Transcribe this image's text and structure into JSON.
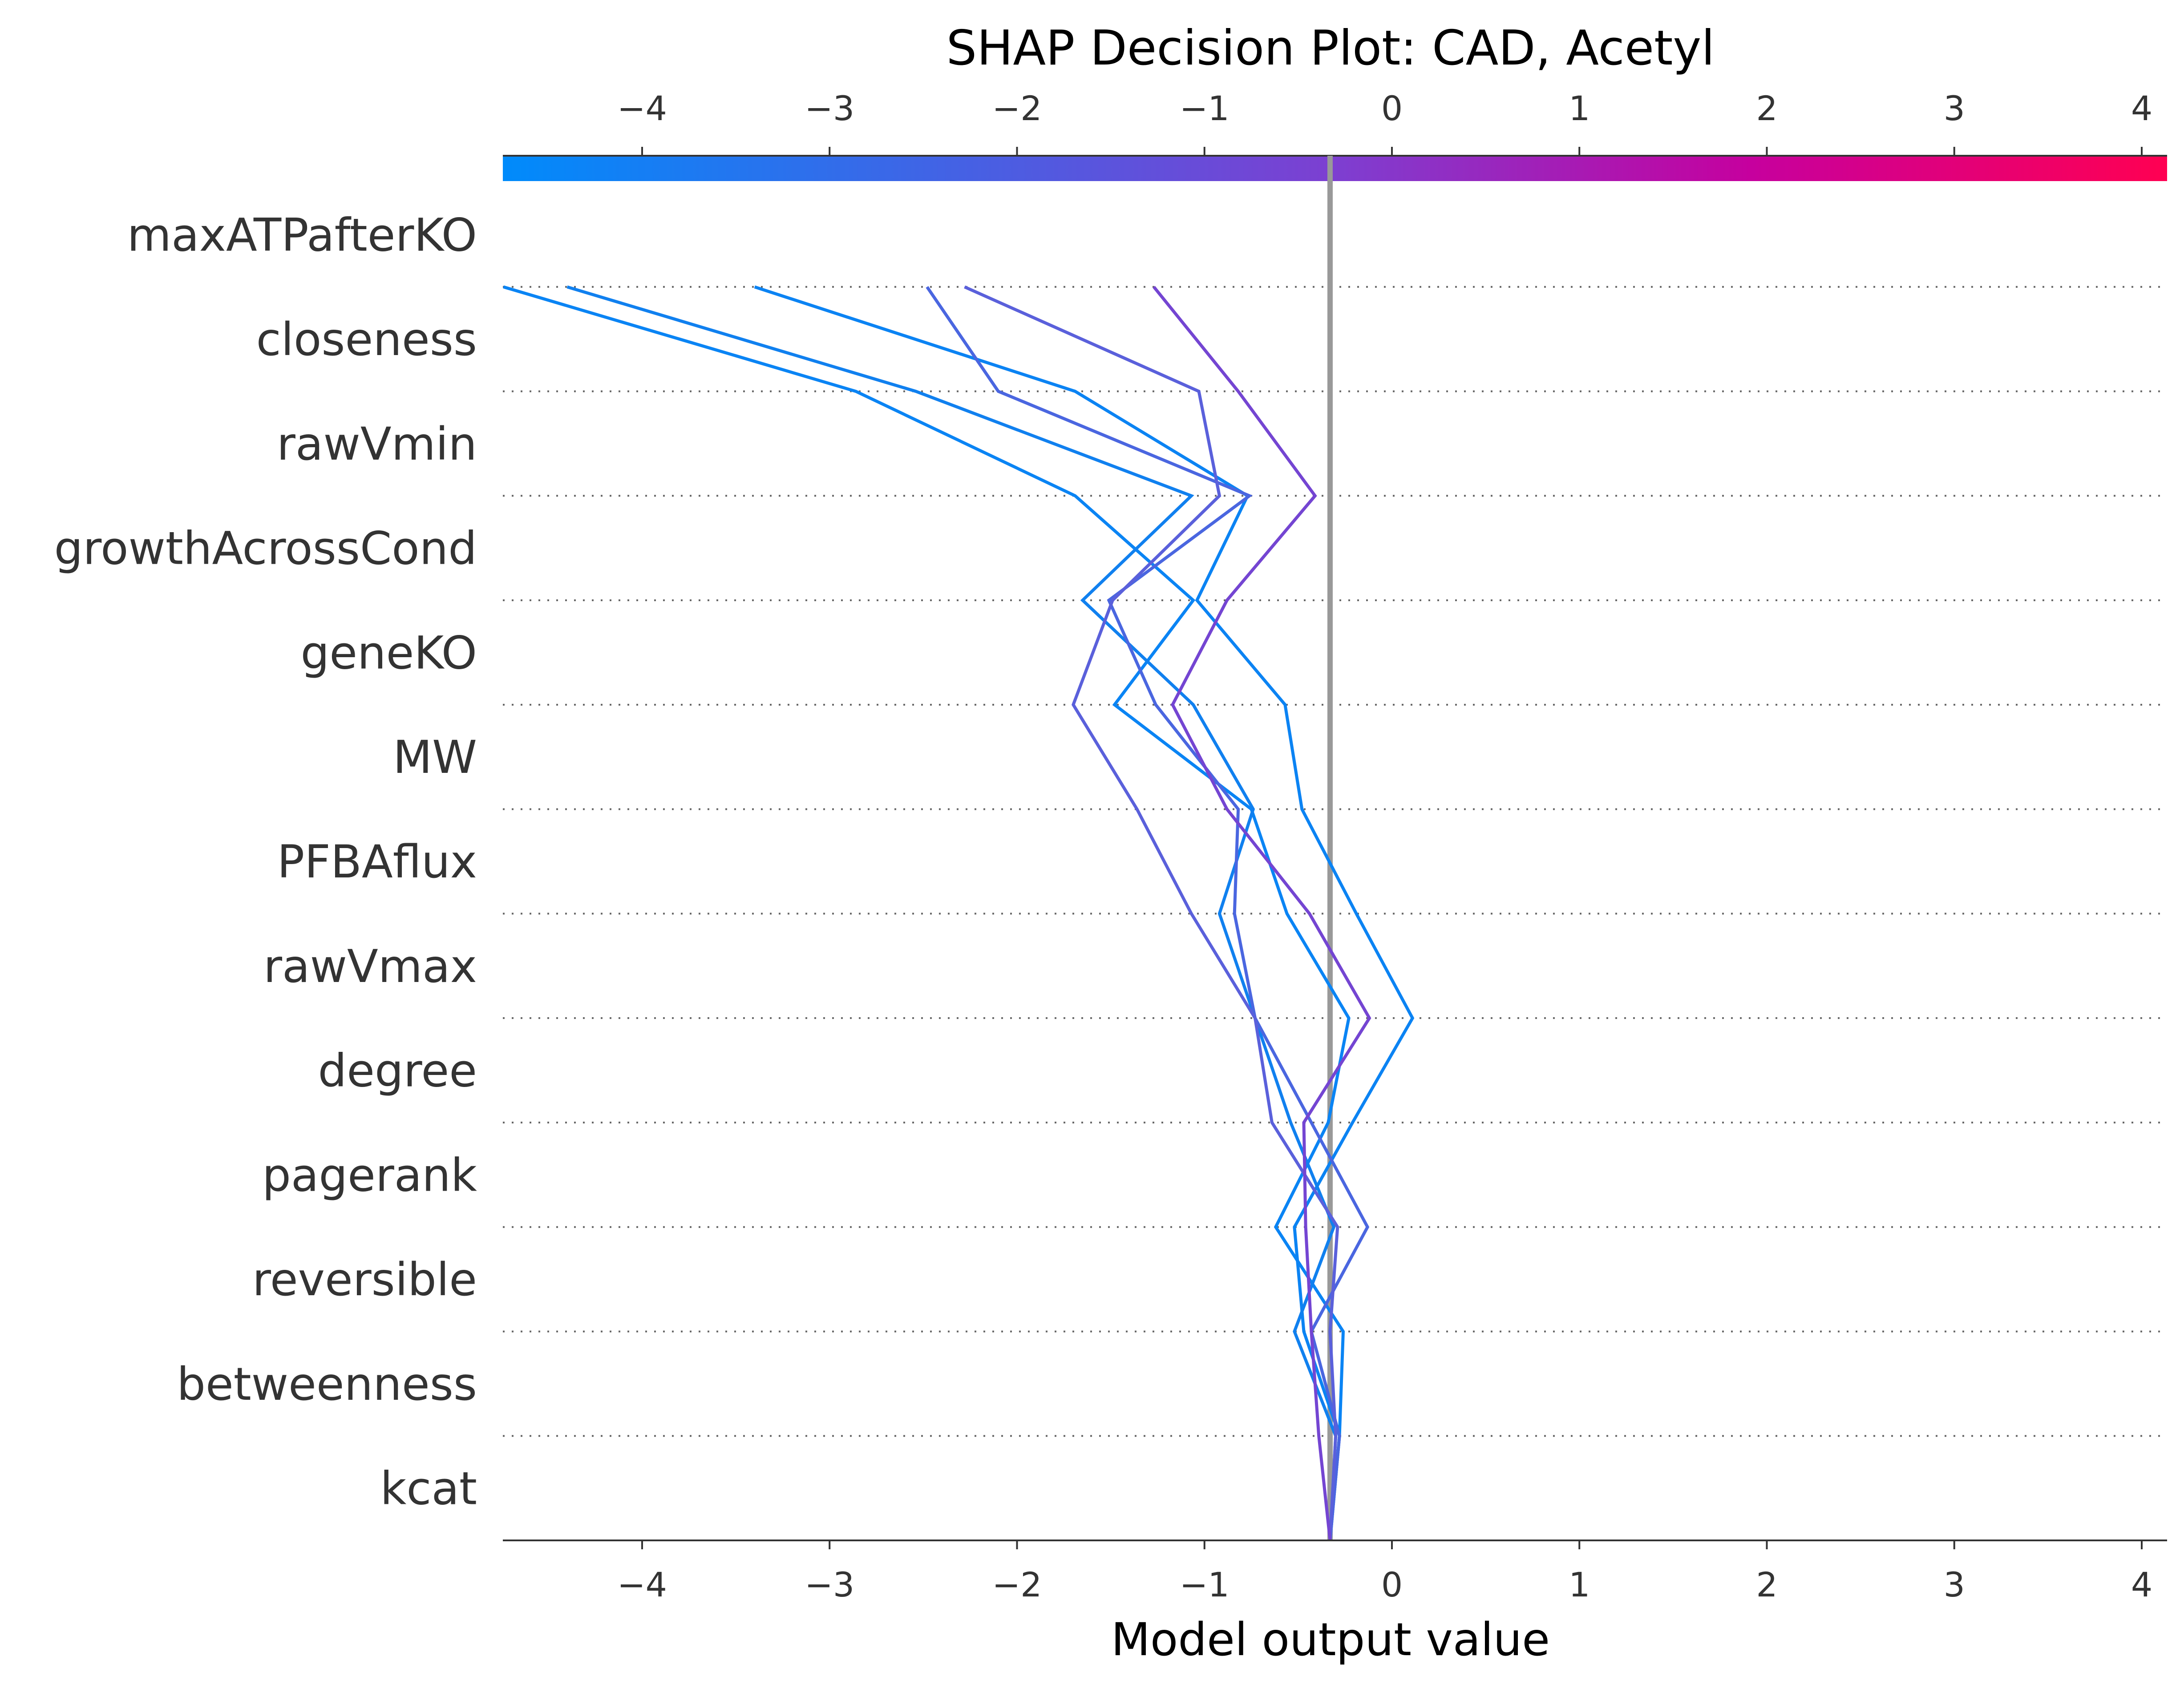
{
  "chart_data": {
    "type": "line",
    "title": "SHAP Decision Plot: CAD, Acetyl",
    "xlabel": "Model output value",
    "ylabel": "",
    "xlim": [
      -4.74,
      4.08
    ],
    "x_ticks": [
      -4,
      -3,
      -2,
      -1,
      0,
      1,
      2,
      3,
      4
    ],
    "x_tick_labels": [
      "−4",
      "−3",
      "−2",
      "−1",
      "0",
      "1",
      "2",
      "3",
      "4"
    ],
    "base_value": -0.33,
    "features": [
      "maxATPafterKO",
      "closeness",
      "rawVmin",
      "growthAcrossCond",
      "geneKO",
      "MW",
      "PFBAflux",
      "rawVmax",
      "degree",
      "pagerank",
      "reversible",
      "betweenness",
      "kcat"
    ],
    "colormap": [
      "#008bfb",
      "#7d3fd1",
      "#ff0052"
    ],
    "colorbar_range": [
      -4.74,
      4.08
    ],
    "grid": "dotted horizontal lines between features",
    "series": [
      {
        "color": "#0a84f4",
        "values": [
          -0.33,
          -0.28,
          -0.26,
          -0.62,
          -0.34,
          -0.23,
          -0.56,
          -0.75,
          -1.48,
          -1.06,
          -1.69,
          -2.86,
          -4.74
        ]
      },
      {
        "color": "#0b83f3",
        "values": [
          -0.33,
          -0.28,
          -0.47,
          -0.52,
          -0.21,
          0.11,
          -0.19,
          -0.48,
          -0.57,
          -1.04,
          -0.77,
          -1.69,
          -3.4
        ]
      },
      {
        "color": "#1080ef",
        "values": [
          -0.33,
          -0.3,
          -0.52,
          -0.31,
          -0.54,
          -0.73,
          -0.92,
          -0.74,
          -1.06,
          -1.65,
          -1.07,
          -2.54,
          -4.4
        ]
      },
      {
        "color": "#4a66e0",
        "values": [
          -0.33,
          -0.28,
          -0.43,
          -0.13,
          -0.43,
          -0.73,
          -0.84,
          -0.82,
          -1.26,
          -1.51,
          -0.76,
          -2.1,
          -2.48
        ]
      },
      {
        "color": "#5a60db",
        "values": [
          -0.33,
          -0.3,
          -0.33,
          -0.29,
          -0.64,
          -0.73,
          -1.07,
          -1.36,
          -1.7,
          -1.49,
          -0.92,
          -1.03,
          -2.28
        ]
      },
      {
        "color": "#7445d2",
        "values": [
          -0.33,
          -0.39,
          -0.43,
          -0.46,
          -0.47,
          -0.12,
          -0.44,
          -0.88,
          -1.17,
          -0.88,
          -0.41,
          -0.82,
          -1.27
        ]
      }
    ]
  }
}
